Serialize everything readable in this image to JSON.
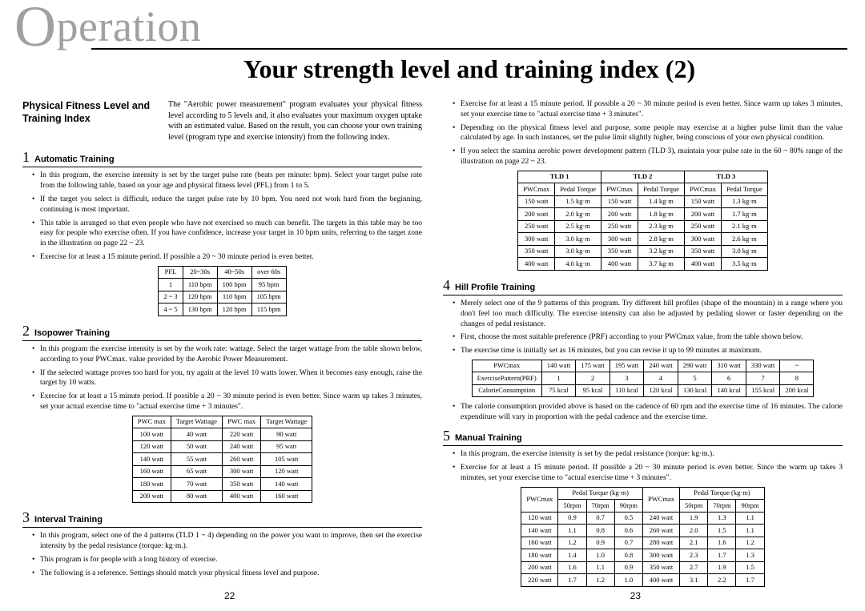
{
  "header_word_prefix": "O",
  "header_word_rest": "peration",
  "main_title": "Your strength level and training index (2)",
  "lead_label": "Physical Fitness Level and Training Index",
  "lead_text": "The \"Aerobic power measurement\" program evaluates your physical fitness level according to 5 levels and, it also evaluates your maximum oxygen uptake with an estimated value. Based on the result, you can choose your own training level (program type and exercise intensity) from the following index.",
  "sections": {
    "s1": {
      "num": "1",
      "title": "Automatic Training"
    },
    "s2": {
      "num": "2",
      "title": "Isopower Training"
    },
    "s3": {
      "num": "3",
      "title": "Interval Training"
    },
    "s4": {
      "num": "4",
      "title": "Hill Profile Training"
    },
    "s5": {
      "num": "5",
      "title": "Manual Training"
    }
  },
  "bullets": {
    "s1": [
      "In this program, the exercise intensity is set by the target pulse rate (beats per minute: bpm). Select your target pulse rate from the following table, based on your age and physical fitness level (PFL) from 1 to 5.",
      "If the target you select is difficult, reduce the target pulse rate by 10 bpm. You need not work hard from the beginning, continuing is most important.",
      "This table is arranged so that even people who have not exercised so much can benefit. The targets in this table may be too easy for people who exercise often. If you have confidence, increase your target in 10 bpm units, referring to the target zone in the illustration on page 22 ~ 23.",
      "Exercise for at least a 15 minute period. If possible a 20 ~ 30 minute period is even better."
    ],
    "s2": [
      "In this program the exercise intensity is set by the work rate: wattage. Select the target wattage from the table shown below, according to your PWCmax. value provided by the Aerobic Power Measurement.",
      "If the selected wattage proves too hard for you, try again at the level 10 watts lower. When it becomes easy enough, raise the target by 10 watts.",
      "Exercise for at least a 15 minute period. If possible a 20 ~ 30 minute period is even better. Since warm up takes 3 minutes, set your actual exercise time to \"actual exercise time + 3 minutes\"."
    ],
    "s3": [
      "In this program, select one of the 4 patterns (TLD 1 ~ 4) depending on the power you want to improve, then set the exercise intensity by the pedal resistance (torque: kg·m.).",
      "This program is for people with a long history of exercise.",
      "The following is a reference. Settings should match your physical fitness level and purpose."
    ],
    "s3b": [
      "Exercise for at least a 15 minute period. If possible a 20 ~ 30 minute period is even better. Since warm up takes 3 minutes, set your exercise time to \"actual exercise time + 3 minutes\".",
      "Depending on the physical fitness level and purpose, some people may exercise at a higher pulse limit than the value calculated by age. In such instances, set the pulse limit slightly higher, being conscious of your own physical condition.",
      "If you select the stamina aerobic power development pattern (TLD 3), maintain your pulse rate in the 60 ~ 80% range of the illustration on page 22 ~ 23."
    ],
    "s4": [
      "Merely select one of the 9 patterns of this program. Try different hill profiles (shape of the mountain) in a range where you don't feel too much difficulty. The exercise intensity can also be adjusted by pedaling slower or faster depending on the changes of pedal resistance.",
      "First, choose the most suitable preference (PRF) according to your PWCmax value, from the table shown below.",
      "The exercise time is initially set as 16 minutes, but you can revise it up to 99 minutes at maximum."
    ],
    "s4b": [
      "The calorie consumption provided above is based on the cadence of 60 rpm and the exercise time of 16 minutes. The calorie expenditure will vary in proportion with the pedal cadence and the exercise time."
    ],
    "s5": [
      "In this program, the exercise intensity is set by the pedal resistance (torque: kg·m.).",
      "Exercise for at least a 15 minute period. If possible a 20 ~ 30 minute period is even better. Since the warm up takes 3 minutes, set your exercise time to \"actual exercise time + 3 minutes\"."
    ]
  },
  "tables": {
    "pfl": {
      "headers": [
        "PFL",
        "20~30s",
        "40~50s",
        "over 60s"
      ],
      "rows": [
        [
          "1",
          "110 bpm",
          "100 bpm",
          "95 bpm"
        ],
        [
          "2 ~ 3",
          "120 bpm",
          "110 bpm",
          "105 bpm"
        ],
        [
          "4 ~ 5",
          "130 bpm",
          "120 bpm",
          "115 bpm"
        ]
      ]
    },
    "isopower": {
      "headers": [
        "PWC max",
        "Target Wattage",
        "PWC max",
        "Target Wattage"
      ],
      "rows": [
        [
          "100 watt",
          "40 watt",
          "220 watt",
          "90 watt"
        ],
        [
          "120 watt",
          "50 watt",
          "240 watt",
          "95 watt"
        ],
        [
          "140 watt",
          "55 watt",
          "260 watt",
          "105 watt"
        ],
        [
          "160 watt",
          "65 watt",
          "300 watt",
          "120 watt"
        ],
        [
          "180 watt",
          "70 watt",
          "350 watt",
          "140 watt"
        ],
        [
          "200 watt",
          "80 watt",
          "400 watt",
          "160 watt"
        ]
      ]
    },
    "tld": {
      "group_headers": [
        "TLD 1",
        "TLD 2",
        "TLD 3"
      ],
      "sub_headers": [
        "PWCmax",
        "Pedal Torque",
        "PWCmax",
        "Pedal Torque",
        "PWCmax",
        "Pedal Torque"
      ],
      "rows": [
        [
          "150 watt",
          "1.5 kg·m",
          "150 watt",
          "1.4 kg·m",
          "150 watt",
          "1.3 kg·m"
        ],
        [
          "200 watt",
          "2.0 kg·m",
          "200 watt",
          "1.8 kg·m",
          "200 watt",
          "1.7 kg·m"
        ],
        [
          "250 watt",
          "2.5 kg·m",
          "250 watt",
          "2.3 kg·m",
          "250 watt",
          "2.1 kg·m"
        ],
        [
          "300 watt",
          "3.0 kg·m",
          "300 watt",
          "2.8 kg·m",
          "300 watt",
          "2.6 kg·m"
        ],
        [
          "350 watt",
          "3.0 kg·m",
          "350 watt",
          "3.2 kg·m",
          "350 watt",
          "3.0 kg·m"
        ],
        [
          "400 watt",
          "4.0 kg·m",
          "400 watt",
          "3.7 kg·m",
          "400 watt",
          "3.5 kg·m"
        ]
      ]
    },
    "hill": {
      "row_labels": [
        "PWCmax",
        "ExercisePattern(PRF)",
        "CalorieConsumption"
      ],
      "cols": [
        "140 watt",
        "175 watt",
        "195 watt",
        "240 watt",
        "290 watt",
        "310 watt",
        "330 watt",
        "~"
      ],
      "prf": [
        "1",
        "2",
        "3",
        "4",
        "5",
        "6",
        "7",
        "8"
      ],
      "kcal": [
        "75 kcal",
        "95 kcal",
        "110 kcal",
        "120 kcal",
        "130 kcal",
        "140 kcal",
        "155 kcal",
        "200 kcal"
      ]
    },
    "manual": {
      "group_top": [
        "PWCmax",
        "Pedal Torque (kg·m)",
        "PWCmax",
        "Pedal Torque (kg·m)"
      ],
      "group_sub": [
        "50rpm",
        "70rpm",
        "90rpm",
        "50rpm",
        "70rpm",
        "90rpm"
      ],
      "rows": [
        [
          "120 watt",
          "0.9",
          "0.7",
          "0.5",
          "240 watt",
          "1.9",
          "1.3",
          "1.1"
        ],
        [
          "140 watt",
          "1.1",
          "0.8",
          "0.6",
          "260 watt",
          "2.0",
          "1.5",
          "1.1"
        ],
        [
          "160 watt",
          "1.2",
          "0.9",
          "0.7",
          "280 watt",
          "2.1",
          "1.6",
          "1.2"
        ],
        [
          "180 watt",
          "1.4",
          "1.0",
          "0.8",
          "300 watt",
          "2.3",
          "1.7",
          "1.3"
        ],
        [
          "200 watt",
          "1.6",
          "1.1",
          "0.9",
          "350 watt",
          "2.7",
          "1.9",
          "1.5"
        ],
        [
          "220 watt",
          "1.7",
          "1.2",
          "1.0",
          "400 watt",
          "3.1",
          "2.2",
          "1.7"
        ]
      ]
    }
  },
  "page_left": "22",
  "page_right": "23"
}
